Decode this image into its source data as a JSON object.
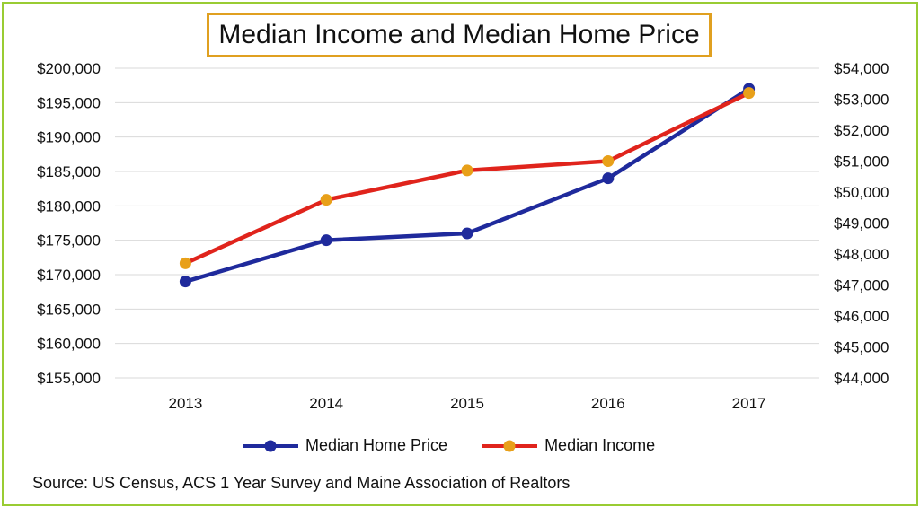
{
  "chart_data": {
    "type": "line",
    "title": "Median Income and Median Home Price",
    "categories": [
      "2013",
      "2014",
      "2015",
      "2016",
      "2017"
    ],
    "left_axis": {
      "min": 155000,
      "max": 200000,
      "step": 5000,
      "tick_labels": [
        "$155,000",
        "$160,000",
        "$165,000",
        "$170,000",
        "$175,000",
        "$180,000",
        "$185,000",
        "$190,000",
        "$195,000",
        "$200,000"
      ]
    },
    "right_axis": {
      "min": 44000,
      "max": 54000,
      "step": 1000,
      "tick_labels": [
        "$44,000",
        "$45,000",
        "$46,000",
        "$47,000",
        "$48,000",
        "$49,000",
        "$50,000",
        "$51,000",
        "$52,000",
        "$53,000",
        "$54,000"
      ]
    },
    "series": [
      {
        "name": "Median Home Price",
        "axis": "left",
        "color": "#1f2a9c",
        "marker_color": "#1f2a9c",
        "values": [
          169000,
          175000,
          176000,
          184000,
          197000
        ]
      },
      {
        "name": "Median Income",
        "axis": "right",
        "color": "#e0241c",
        "marker_color": "#e8a019",
        "values": [
          47700,
          49750,
          50700,
          51000,
          53200
        ]
      }
    ],
    "grid": true,
    "legend_position": "bottom"
  },
  "source_text": "Source: US Census, ACS 1 Year Survey and Maine Association of Realtors"
}
